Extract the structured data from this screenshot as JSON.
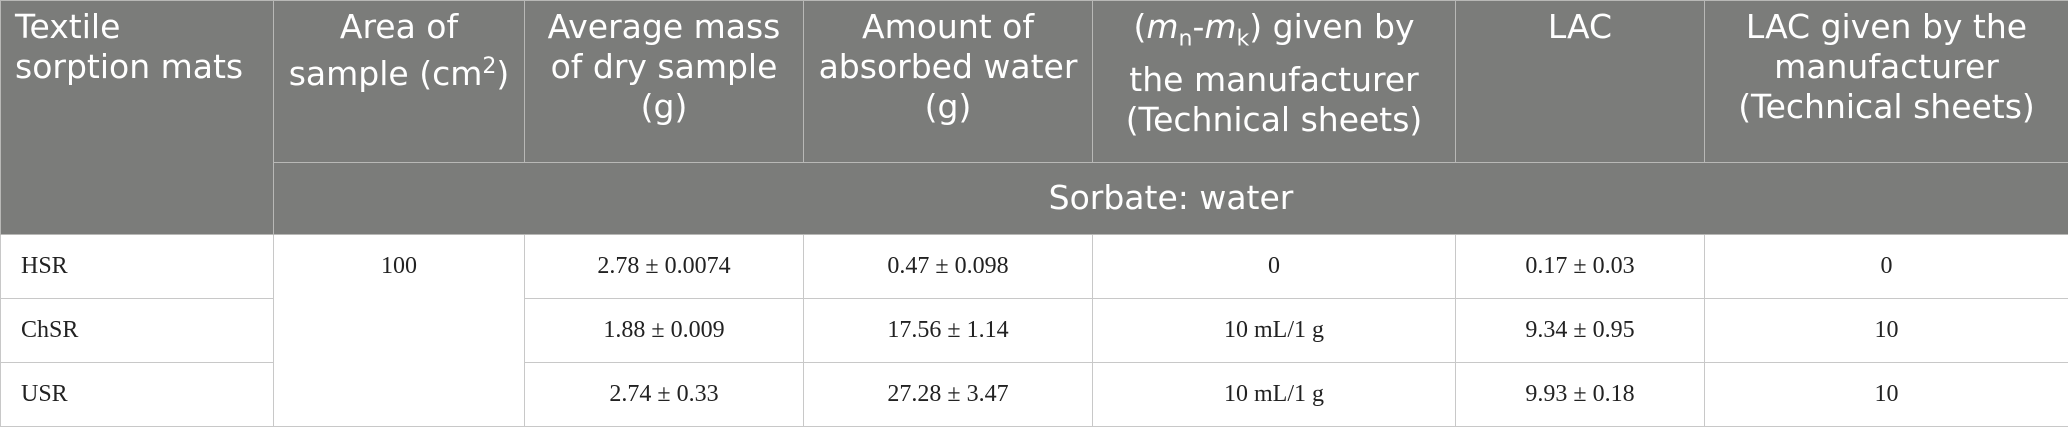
{
  "table": {
    "header": [
      {
        "parts": [
          "Textile sorption mats"
        ]
      },
      {
        "parts": [
          "Area of sample (cm",
          "2",
          ")"
        ]
      },
      {
        "parts": [
          "Average mass of dry sample (g)"
        ]
      },
      {
        "parts": [
          "Amount of absorbed water (g)"
        ]
      },
      {
        "parts": [
          "(",
          "m",
          "n",
          "-",
          "m",
          "k",
          ") given by the manufacturer (Technical sheets)"
        ]
      },
      {
        "parts": [
          "LAC"
        ]
      },
      {
        "parts": [
          "LAC given by the manufacturer (Technical sheets)"
        ]
      }
    ],
    "subheader": "Sorbate: water",
    "area": "100",
    "rows": [
      [
        "HSR",
        "2.78 ± 0.0074",
        "0.47 ± 0.098",
        "0",
        "0.17 ± 0.03",
        "0"
      ],
      [
        "ChSR",
        "1.88 ± 0.009",
        "17.56 ± 1.14",
        "10 mL/1 g",
        "9.34 ± 0.95",
        "10"
      ],
      [
        "USR",
        "2.74 ± 0.33",
        "27.28 ± 3.47",
        "10 mL/1 g",
        "9.93 ± 0.18",
        "10"
      ]
    ]
  }
}
